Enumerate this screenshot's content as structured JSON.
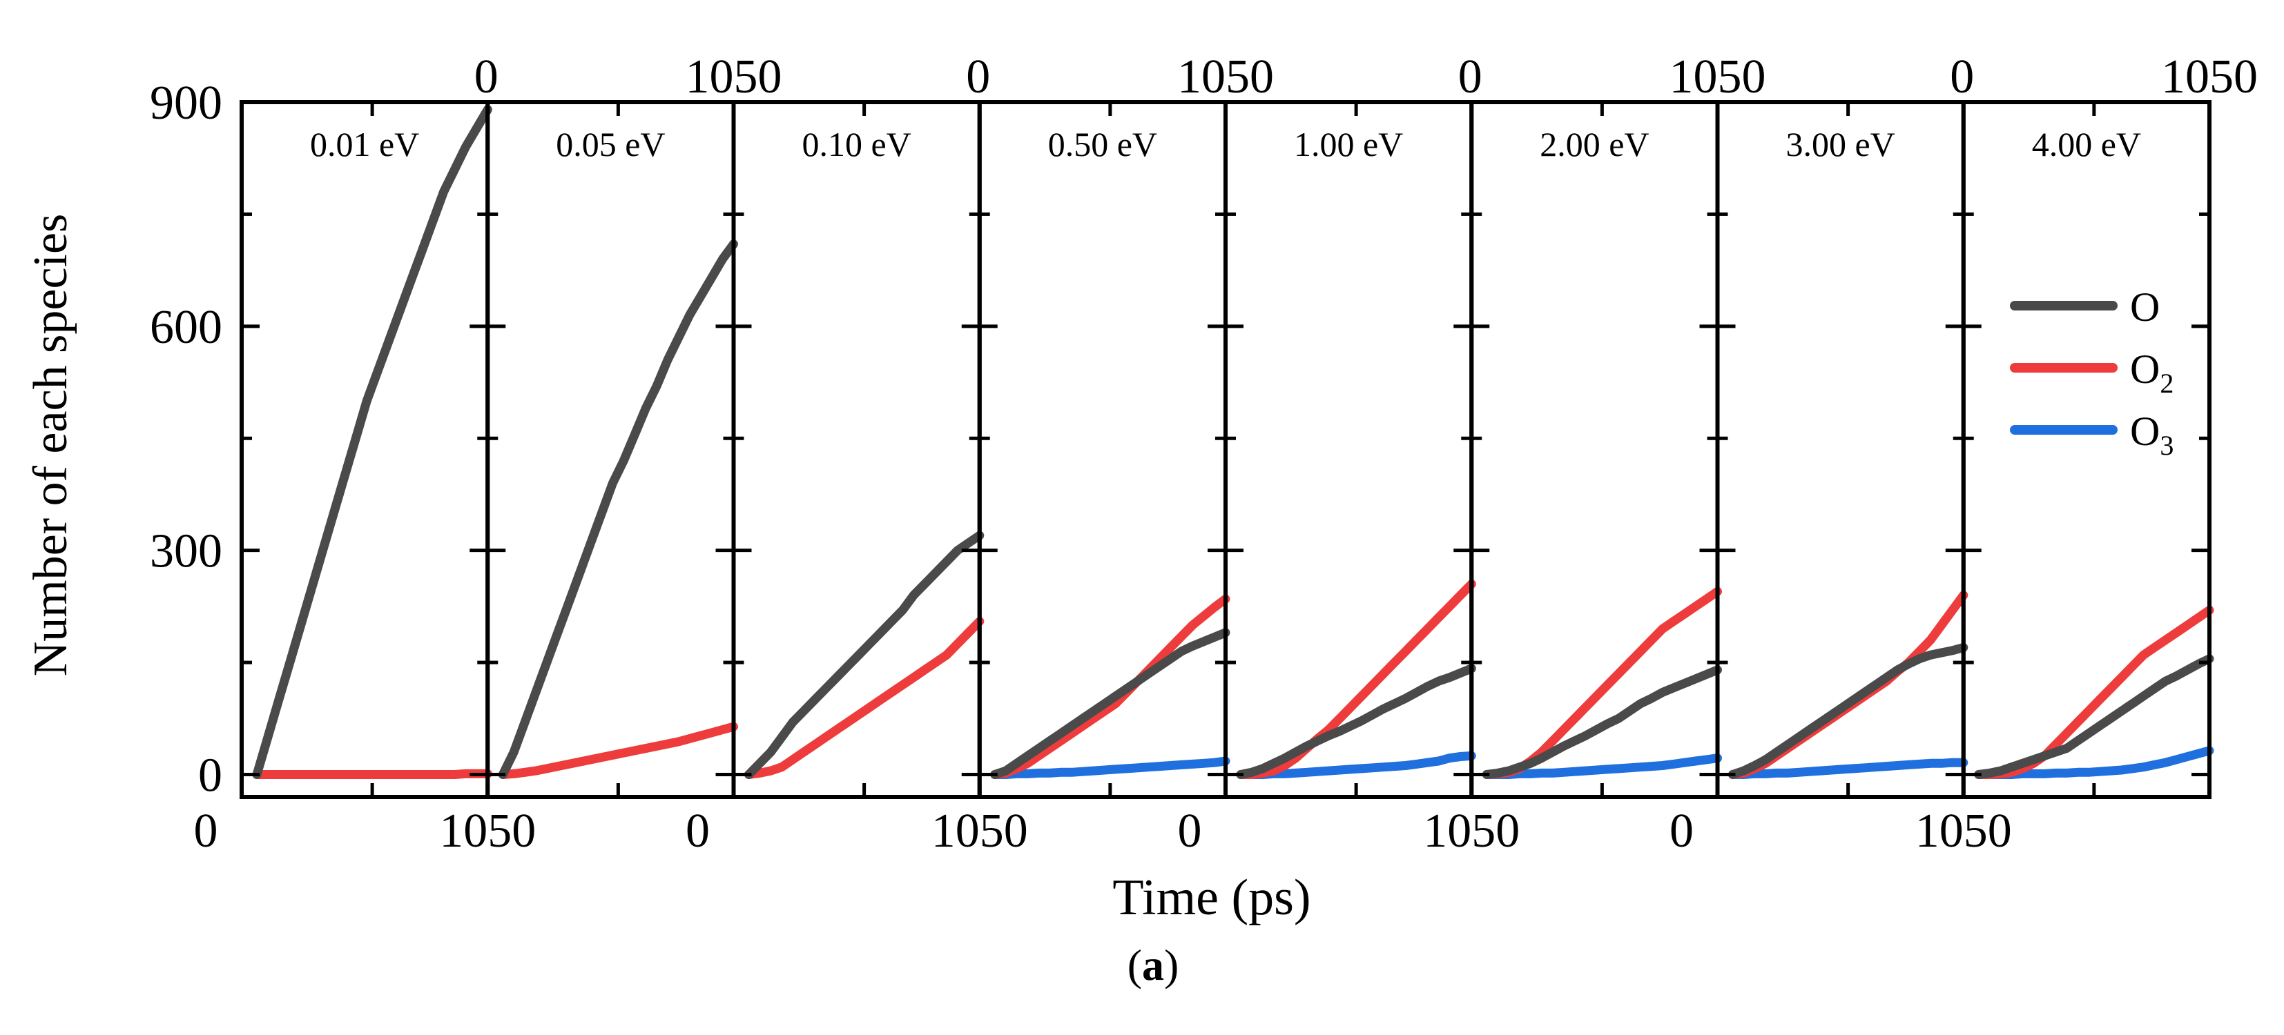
{
  "figure": {
    "caption_letter": "a",
    "caption_open": "(",
    "caption_close": ")"
  },
  "colors": {
    "O": "#4a4a4a",
    "O2": "#ee3b3b",
    "O3": "#1f6fde",
    "axis": "#000000"
  },
  "chart_data": {
    "type": "line",
    "ylabel": "Number of each species",
    "xlabel": "Time (ps)",
    "ylim": [
      -30,
      900
    ],
    "xlim": [
      0,
      1050
    ],
    "y_ticks": [
      0,
      300,
      600,
      900
    ],
    "x_tick_labels": [
      "0",
      "1050"
    ],
    "legend": {
      "position": "right, inside last panel",
      "entries": [
        {
          "key": "O",
          "label": "O",
          "sub": ""
        },
        {
          "key": "O2",
          "label": "O",
          "sub": "2"
        },
        {
          "key": "O3",
          "label": "O",
          "sub": "3"
        }
      ]
    },
    "x": [
      0,
      50,
      100,
      150,
      200,
      250,
      300,
      350,
      400,
      450,
      500,
      550,
      600,
      650,
      700,
      750,
      800,
      850,
      900,
      950,
      1000,
      1050
    ],
    "panels": [
      {
        "label": "0.01 eV",
        "series": [
          {
            "name": "O",
            "values": [
              0,
              50,
              100,
              150,
              200,
              250,
              300,
              350,
              400,
              450,
              500,
              540,
              580,
              620,
              660,
              700,
              740,
              780,
              810,
              840,
              865,
              890
            ]
          },
          {
            "name": "O2",
            "values": [
              0,
              0,
              0,
              0,
              0,
              0,
              0,
              0,
              0,
              0,
              0,
              0,
              0,
              0,
              0,
              0,
              0,
              0,
              0,
              1,
              1,
              1
            ]
          }
        ]
      },
      {
        "label": "0.05 eV",
        "series": [
          {
            "name": "O",
            "values": [
              0,
              30,
              70,
              110,
              150,
              190,
              230,
              270,
              310,
              350,
              390,
              420,
              455,
              490,
              520,
              555,
              585,
              615,
              640,
              665,
              690,
              710
            ]
          },
          {
            "name": "O2",
            "values": [
              0,
              1,
              3,
              5,
              8,
              11,
              14,
              17,
              20,
              23,
              26,
              29,
              32,
              35,
              38,
              41,
              44,
              48,
              52,
              56,
              60,
              64
            ]
          }
        ]
      },
      {
        "label": "0.10 eV",
        "series": [
          {
            "name": "O",
            "values": [
              0,
              15,
              30,
              50,
              70,
              85,
              100,
              115,
              130,
              145,
              160,
              175,
              190,
              205,
              220,
              240,
              255,
              270,
              285,
              300,
              310,
              320
            ]
          },
          {
            "name": "O2",
            "values": [
              0,
              2,
              5,
              10,
              20,
              30,
              40,
              50,
              60,
              70,
              80,
              90,
              100,
              110,
              120,
              130,
              140,
              150,
              160,
              175,
              190,
              205
            ]
          }
        ]
      },
      {
        "label": "0.50 eV",
        "series": [
          {
            "name": "O",
            "values": [
              0,
              5,
              15,
              25,
              35,
              45,
              55,
              65,
              75,
              85,
              95,
              105,
              115,
              125,
              135,
              145,
              155,
              165,
              172,
              178,
              184,
              190
            ]
          },
          {
            "name": "O2",
            "values": [
              0,
              2,
              8,
              15,
              25,
              35,
              45,
              55,
              65,
              75,
              85,
              95,
              110,
              125,
              140,
              155,
              170,
              185,
              200,
              212,
              224,
              235
            ]
          },
          {
            "name": "O3",
            "values": [
              0,
              0,
              1,
              1,
              2,
              2,
              3,
              3,
              4,
              5,
              6,
              7,
              8,
              9,
              10,
              11,
              12,
              13,
              14,
              15,
              16,
              18
            ]
          }
        ]
      },
      {
        "label": "1.00 eV",
        "series": [
          {
            "name": "O",
            "values": [
              0,
              3,
              8,
              15,
              22,
              30,
              38,
              45,
              52,
              58,
              65,
              72,
              80,
              88,
              95,
              102,
              110,
              118,
              125,
              130,
              136,
              142
            ]
          },
          {
            "name": "O2",
            "values": [
              0,
              0,
              2,
              5,
              12,
              22,
              35,
              48,
              60,
              75,
              90,
              105,
              120,
              135,
              150,
              165,
              180,
              195,
              210,
              225,
              240,
              255
            ]
          },
          {
            "name": "O3",
            "values": [
              0,
              0,
              0,
              1,
              1,
              2,
              3,
              4,
              5,
              6,
              7,
              8,
              9,
              10,
              11,
              12,
              14,
              16,
              18,
              22,
              24,
              25
            ]
          }
        ]
      },
      {
        "label": "2.00 eV",
        "series": [
          {
            "name": "O",
            "values": [
              0,
              2,
              5,
              10,
              15,
              22,
              30,
              38,
              45,
              52,
              60,
              68,
              75,
              85,
              95,
              102,
              110,
              116,
              122,
              128,
              134,
              140
            ]
          },
          {
            "name": "O2",
            "values": [
              0,
              1,
              3,
              8,
              18,
              30,
              45,
              60,
              75,
              90,
              105,
              120,
              135,
              150,
              165,
              180,
              195,
              205,
              215,
              225,
              235,
              245
            ]
          },
          {
            "name": "O3",
            "values": [
              0,
              0,
              0,
              1,
              1,
              2,
              2,
              3,
              4,
              5,
              6,
              7,
              8,
              9,
              10,
              11,
              12,
              14,
              16,
              18,
              20,
              22
            ]
          }
        ]
      },
      {
        "label": "3.00 eV",
        "series": [
          {
            "name": "O",
            "values": [
              0,
              5,
              12,
              20,
              30,
              40,
              50,
              60,
              70,
              80,
              90,
              100,
              110,
              120,
              130,
              140,
              148,
              155,
              160,
              163,
              166,
              170
            ]
          },
          {
            "name": "O2",
            "values": [
              0,
              2,
              8,
              15,
              25,
              35,
              45,
              55,
              65,
              75,
              85,
              95,
              105,
              115,
              125,
              138,
              150,
              165,
              180,
              200,
              220,
              240
            ]
          },
          {
            "name": "O3",
            "values": [
              0,
              0,
              1,
              1,
              2,
              2,
              3,
              4,
              5,
              6,
              7,
              8,
              9,
              10,
              11,
              12,
              13,
              14,
              15,
              15,
              16,
              16
            ]
          }
        ]
      },
      {
        "label": "4.00 eV",
        "series": [
          {
            "name": "O",
            "values": [
              0,
              2,
              5,
              10,
              15,
              20,
              25,
              30,
              35,
              45,
              55,
              65,
              75,
              85,
              95,
              105,
              115,
              125,
              132,
              140,
              148,
              155
            ]
          },
          {
            "name": "O2",
            "values": [
              0,
              0,
              1,
              3,
              8,
              15,
              25,
              40,
              55,
              70,
              85,
              100,
              115,
              130,
              145,
              160,
              170,
              180,
              190,
              200,
              210,
              220
            ]
          },
          {
            "name": "O3",
            "values": [
              0,
              0,
              0,
              0,
              1,
              1,
              1,
              2,
              2,
              3,
              3,
              4,
              5,
              6,
              8,
              10,
              13,
              16,
              20,
              24,
              28,
              32
            ]
          }
        ]
      }
    ]
  }
}
